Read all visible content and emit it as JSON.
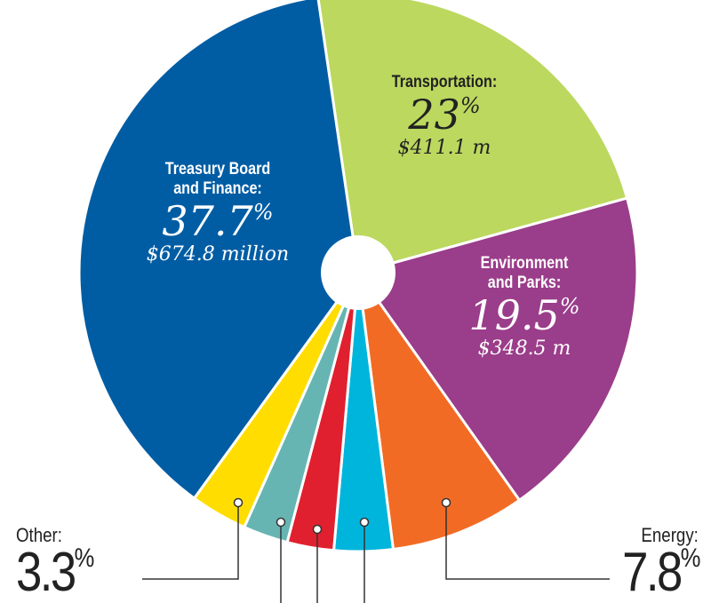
{
  "chart_data": {
    "type": "pie",
    "title": "",
    "slices": [
      {
        "label": "Transportation:",
        "value": 23,
        "percent_label": "23",
        "amount": "$411.1 m",
        "color": "#bcd85f"
      },
      {
        "label": "Environment and Parks:",
        "value": 19.5,
        "percent_label": "19.5",
        "amount": "$348.5 m",
        "color": "#9a3d8a"
      },
      {
        "label": "Energy:",
        "value": 7.8,
        "percent_label": "7.8",
        "amount": "",
        "color": "#f26b25"
      },
      {
        "label": "",
        "value": 3.4,
        "percent_label": "",
        "amount": "",
        "color": "#00b5dc"
      },
      {
        "label": "",
        "value": 2.7,
        "percent_label": "",
        "amount": "",
        "color": "#e0202e"
      },
      {
        "label": "",
        "value": 2.6,
        "percent_label": "",
        "amount": "",
        "color": "#66b5b3"
      },
      {
        "label": "Other:",
        "value": 3.3,
        "percent_label": "3.3",
        "amount": "",
        "color": "#ffdd00"
      },
      {
        "label": "Treasury Board and Finance:",
        "value": 37.7,
        "percent_label": "37.7",
        "amount": "$674.8 million",
        "color": "#005da4"
      }
    ],
    "percent_sign": "%",
    "donut_hole": true
  },
  "labels": {
    "treasury_1": "Treasury Board",
    "treasury_2": "and Finance:",
    "treasury_pct": "37.7",
    "treasury_amt": "$674.8 million",
    "transport": "Transportation:",
    "transport_pct": "23",
    "transport_amt": "$411.1 m",
    "env_1": "Environment",
    "env_2": "and Parks:",
    "env_pct": "19.5",
    "env_amt": "$348.5 m",
    "other": "Other:",
    "other_pct": "3.3",
    "energy": "Energy:",
    "energy_pct": "7.8",
    "pct": "%"
  }
}
